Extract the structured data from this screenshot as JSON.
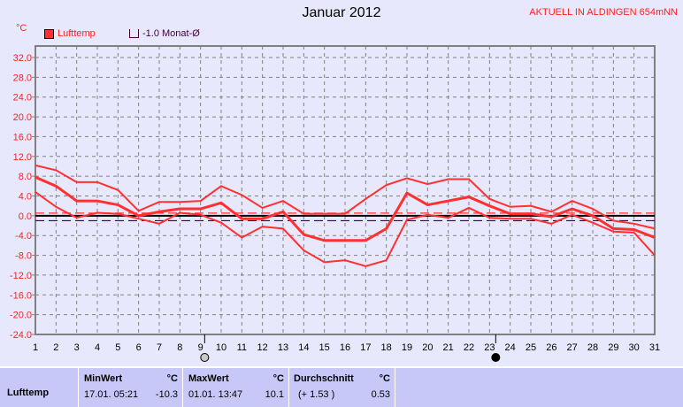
{
  "header": {
    "title": "Januar 2012",
    "station": "AKTUELL IN ALDINGEN 654mNN",
    "unit": "°C"
  },
  "legend": [
    {
      "label": "Lufttemp",
      "color": "#ff3030"
    },
    {
      "label": "-1.0 Monat-Ø",
      "color": "#400040"
    }
  ],
  "moon_icons": [
    "full-moon-icon",
    "new-moon-icon"
  ],
  "chart_data": {
    "type": "line",
    "title": "Januar 2012",
    "ylabel": "°C",
    "ylim": [
      -24,
      32
    ],
    "yticks": [
      "32.0",
      "28.0",
      "24.0",
      "20.0",
      "16.0",
      "12.0",
      "8.0",
      "4.0",
      "0.0",
      "-4.0",
      "-8.0",
      "-12.0",
      "-16.0",
      "-20.0",
      "-24.0"
    ],
    "x": [
      1,
      2,
      3,
      4,
      5,
      6,
      7,
      8,
      9,
      10,
      11,
      12,
      13,
      14,
      15,
      16,
      17,
      18,
      19,
      20,
      21,
      22,
      23,
      24,
      25,
      26,
      27,
      28,
      29,
      30,
      31
    ],
    "grid": true,
    "series": [
      {
        "role": "max",
        "values": [
          10.2,
          9.2,
          6.8,
          6.8,
          5.2,
          1.0,
          2.8,
          2.8,
          3.0,
          6.0,
          4.2,
          1.6,
          3.0,
          0.4,
          0.4,
          0.4,
          3.4,
          6.2,
          7.6,
          6.4,
          7.4,
          7.4,
          3.4,
          1.8,
          2.0,
          0.8,
          3.0,
          1.4,
          -1.0,
          -1.6,
          -2.6
        ]
      },
      {
        "role": "avg",
        "values": [
          7.8,
          6.0,
          3.0,
          3.0,
          2.2,
          0.0,
          0.8,
          1.4,
          1.4,
          2.6,
          -0.6,
          -0.6,
          0.8,
          -3.8,
          -5.0,
          -5.0,
          -5.0,
          -2.6,
          4.6,
          2.2,
          3.0,
          3.8,
          2.0,
          0.4,
          0.4,
          -0.2,
          1.4,
          0.0,
          -2.6,
          -2.8,
          -4.4
        ]
      },
      {
        "role": "min",
        "values": [
          4.8,
          1.8,
          -0.4,
          0.6,
          0.4,
          -0.6,
          -1.6,
          0.6,
          0.2,
          -1.4,
          -4.4,
          -2.2,
          -2.6,
          -7.0,
          -9.4,
          -9.0,
          -10.2,
          -9.0,
          -0.8,
          0.2,
          -0.4,
          1.6,
          -0.4,
          -0.6,
          -0.6,
          -1.6,
          0.2,
          -1.4,
          -3.2,
          -3.4,
          -8.0
        ]
      }
    ],
    "reference_lines": [
      {
        "value": 0,
        "color": "#000000"
      },
      {
        "value": -1.0,
        "color": "#400040"
      },
      {
        "value": 0.53,
        "color": "#ff3030"
      }
    ],
    "moon_days": [
      {
        "day": 9.2,
        "phase": "full"
      },
      {
        "day": 23.3,
        "phase": "new"
      }
    ]
  },
  "table": {
    "row_label": "Lufttemp",
    "min": {
      "header": "MinWert",
      "unit": "°C",
      "date": "17.01.  05:21",
      "value": "-10.3"
    },
    "max": {
      "header": "MaxWert",
      "unit": "°C",
      "date": "01.01.  13:47",
      "value": "10.1"
    },
    "avg": {
      "header": "Durchschnitt",
      "unit": "°C",
      "dev": "(+ 1.53 )",
      "value": "0.53"
    }
  }
}
